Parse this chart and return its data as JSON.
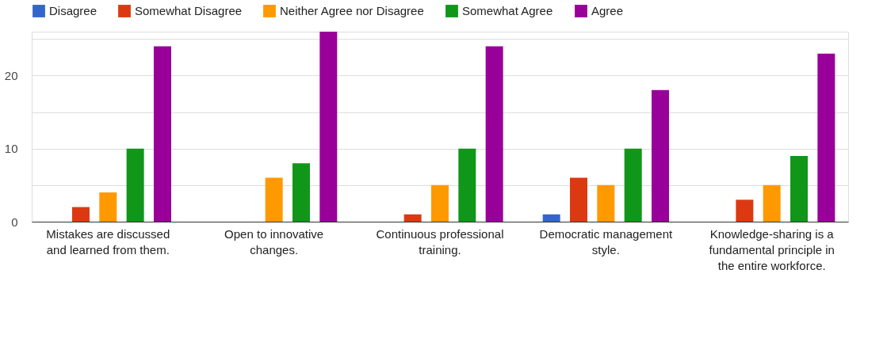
{
  "chart_data": {
    "type": "bar",
    "categories": [
      "Mistakes are discussed and learned from them.",
      "Open to innovative changes.",
      "Continuous professional training.",
      "Democratic management style.",
      "Knowledge-sharing is a fundamental principle in the entire workforce."
    ],
    "series": [
      {
        "name": "Disagree",
        "color": "#3366cc",
        "values": [
          0,
          0,
          0,
          1,
          0
        ]
      },
      {
        "name": "Somewhat Disagree",
        "color": "#dc3912",
        "values": [
          2,
          0,
          1,
          6,
          3
        ]
      },
      {
        "name": "Neither Agree nor Disagree",
        "color": "#ff9900",
        "values": [
          4,
          6,
          5,
          5,
          5
        ]
      },
      {
        "name": "Somewhat Agree",
        "color": "#109618",
        "values": [
          10,
          8,
          10,
          10,
          9
        ]
      },
      {
        "name": "Agree",
        "color": "#990099",
        "values": [
          24,
          26,
          24,
          18,
          23
        ]
      }
    ],
    "ylim": [
      0,
      26
    ],
    "yticks": [
      0,
      {
        "value": 5,
        "label": null
      },
      10,
      {
        "value": 15,
        "label": null
      },
      20,
      {
        "value": 25,
        "label": null
      }
    ],
    "grid": "y",
    "legend": "top left"
  }
}
